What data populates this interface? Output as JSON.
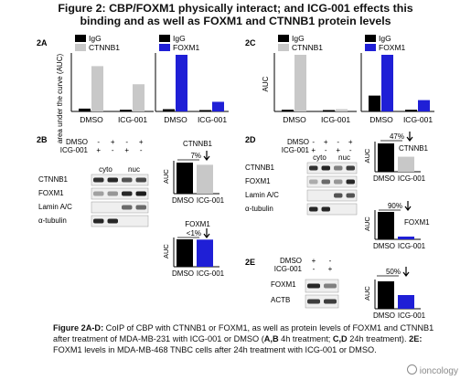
{
  "header": {
    "title_line1": "Figure 2: CBP/FOXM1 physically interact; and ICG-001 effects this",
    "title_line2": "binding and as well as FOXM1 and CTNNB1 protein levels"
  },
  "panel_labels": {
    "a": "2A",
    "b": "2B",
    "c": "2C",
    "d": "2D",
    "e": "2E"
  },
  "colors": {
    "igg": "#000000",
    "ctnnb1": "#c8c8c8",
    "foxm1": "#1f1fd6",
    "dmso": "#000000",
    "icg": "#c8c8c8",
    "icg_blue": "#1f1fd6"
  },
  "chart_data": [
    {
      "id": "2A-left",
      "type": "bar",
      "ylabel": "area under the curve (AUC)",
      "ylim": [
        0,
        100
      ],
      "categories": [
        "DMSO",
        "ICG-001"
      ],
      "series": [
        {
          "name": "IgG",
          "values": [
            5,
            3
          ]
        },
        {
          "name": "CTNNB1",
          "values": [
            80,
            48
          ]
        }
      ],
      "legend": [
        "IgG",
        "CTNNB1"
      ]
    },
    {
      "id": "2A-right",
      "type": "bar",
      "ylim": [
        0,
        100
      ],
      "categories": [
        "DMSO",
        "ICG-001"
      ],
      "series": [
        {
          "name": "IgG",
          "values": [
            4,
            2
          ]
        },
        {
          "name": "FOXM1",
          "values": [
            100,
            17
          ]
        }
      ],
      "legend": [
        "IgG",
        "FOXM1"
      ]
    },
    {
      "id": "2C-left",
      "type": "bar",
      "ylabel": "AUC",
      "ylim": [
        0,
        100
      ],
      "categories": [
        "DMSO",
        "ICG-001"
      ],
      "series": [
        {
          "name": "IgG",
          "values": [
            3,
            2
          ]
        },
        {
          "name": "CTNNB1",
          "values": [
            100,
            4
          ]
        }
      ],
      "legend": [
        "IgG",
        "CTNNB1"
      ]
    },
    {
      "id": "2C-right",
      "type": "bar",
      "ylim": [
        0,
        100
      ],
      "categories": [
        "DMSO",
        "ICG-001"
      ],
      "series": [
        {
          "name": "IgG",
          "values": [
            28,
            3
          ]
        },
        {
          "name": "FOXM1",
          "values": [
            100,
            20
          ]
        }
      ],
      "legend": [
        "IgG",
        "FOXM1"
      ]
    },
    {
      "id": "2B-ctnnb1",
      "type": "bar",
      "title": "CTNNB1",
      "annotation": "7%",
      "ylabel": "AUC",
      "ylim": [
        0,
        100
      ],
      "categories": [
        "DMSO",
        "ICG-001"
      ],
      "values": [
        100,
        93
      ]
    },
    {
      "id": "2B-foxm1",
      "type": "bar",
      "title": "FOXM1",
      "annotation": "<1%",
      "ylabel": "AUC",
      "ylim": [
        0,
        100
      ],
      "categories": [
        "DMSO",
        "ICG-001"
      ],
      "values": [
        100,
        99
      ]
    },
    {
      "id": "2D-ctnnb1",
      "type": "bar",
      "title": "CTNNB1",
      "annotation": "47%",
      "ylabel": "AUC",
      "ylim": [
        0,
        100
      ],
      "categories": [
        "DMSO",
        "ICG-001"
      ],
      "values": [
        100,
        53
      ]
    },
    {
      "id": "2D-foxm1",
      "type": "bar",
      "title": "FOXM1",
      "annotation": "90%",
      "ylabel": "AUC",
      "ylim": [
        0,
        100
      ],
      "categories": [
        "DMSO",
        "ICG-001"
      ],
      "values": [
        100,
        10
      ]
    },
    {
      "id": "2E-foxm1",
      "type": "bar",
      "annotation": "50%",
      "ylabel": "AUC",
      "ylim": [
        0,
        100
      ],
      "categories": [
        "DMSO",
        "ICG-001"
      ],
      "values": [
        100,
        50
      ]
    }
  ],
  "blots": {
    "b_treat": {
      "dmso": "DMSO",
      "icg": "ICG-001",
      "signs_dmso": [
        "-",
        "+",
        "-",
        "+"
      ],
      "signs_icg": [
        "+",
        "-",
        "+",
        "-"
      ],
      "fractions": [
        "cyto",
        "nuc"
      ]
    },
    "b_rows": [
      "CTNNB1",
      "FOXM1",
      "Lamin A/C",
      "α-tubulin"
    ],
    "d_treat": {
      "dmso": "DMSO",
      "icg": "ICG-001",
      "signs_dmso": [
        "-",
        "+",
        "-",
        "+"
      ],
      "signs_icg": [
        "+",
        "-",
        "+",
        "-"
      ],
      "fractions": [
        "cyto",
        "nuc"
      ]
    },
    "d_rows": [
      "CTNNB1",
      "FOXM1",
      "Lamin A/C",
      "α-tubulin"
    ],
    "e_treat": {
      "dmso": "DMSO",
      "icg": "ICG-001",
      "signs_dmso": [
        "+",
        "-"
      ],
      "signs_icg": [
        "-",
        "+"
      ]
    },
    "e_rows": [
      "FOXM1",
      "ACTB"
    ]
  },
  "caption": {
    "lead": "Figure 2A-D:",
    "t1": " CoIP of CBP with CTNNB1 or FOXM1, as well as protein levels of FOXM1 and CTNNB1 after treatment of MDA-MB-231 with ICG-001 or DMSO (",
    "ab": "A,B",
    "t2": " 4h treatment; ",
    "cd": "C,D",
    "t3": " 24h treatment). ",
    "e": "2E:",
    "t4": " FOXM1 levels in MDA-MB-468 TNBC cells after 24h treatment with ICG-001 or DMSO."
  },
  "watermark": "ioncology"
}
